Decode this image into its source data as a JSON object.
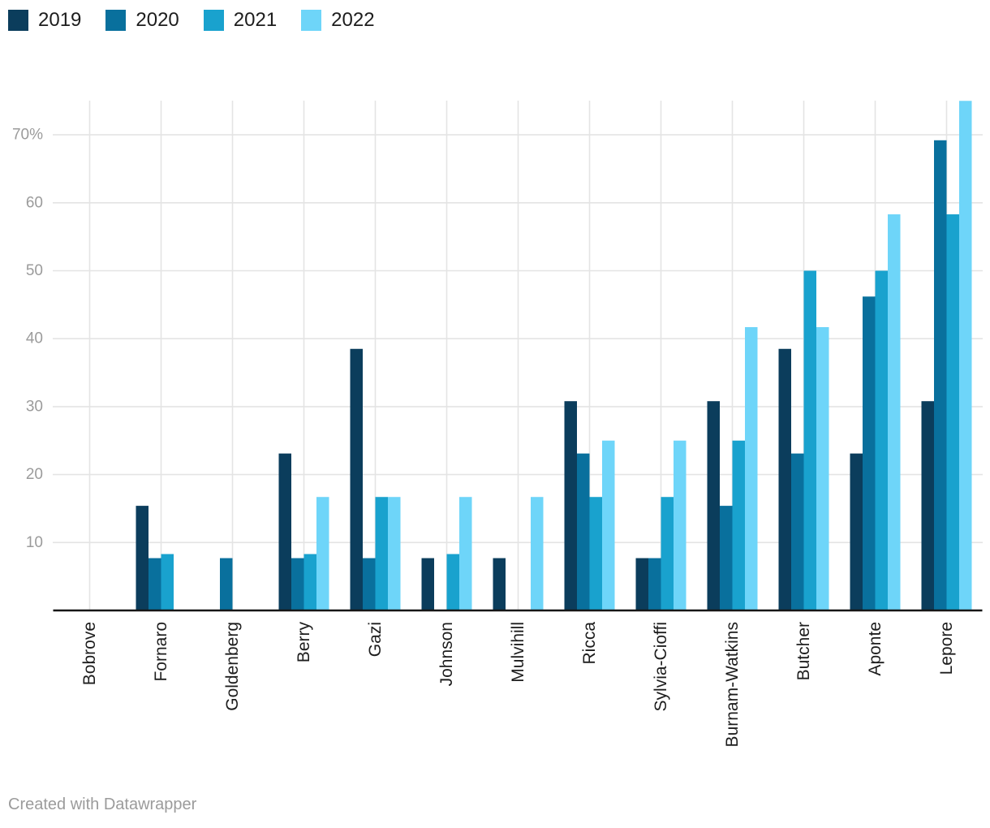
{
  "chart_data": {
    "type": "bar",
    "title": "",
    "categories": [
      "Bobrove",
      "Fornaro",
      "Goldenberg",
      "Berry",
      "Gazi",
      "Johnson",
      "Mulvihill",
      "Ricca",
      "Sylvia-Cioffi",
      "Burnam-Watkins",
      "Butcher",
      "Aponte",
      "Lepore"
    ],
    "series": [
      {
        "name": "2019",
        "color": "#0b3d5c",
        "values": [
          0,
          15.4,
          0,
          23.1,
          38.5,
          7.7,
          7.7,
          30.8,
          7.7,
          30.8,
          38.5,
          23.1,
          30.8
        ]
      },
      {
        "name": "2020",
        "color": "#09709d",
        "values": [
          0,
          7.7,
          7.7,
          7.7,
          7.7,
          0,
          0,
          23.1,
          7.7,
          15.4,
          23.1,
          46.2,
          69.2
        ]
      },
      {
        "name": "2021",
        "color": "#19a2ce",
        "values": [
          0,
          8.3,
          0,
          8.3,
          16.7,
          8.3,
          0,
          16.7,
          16.7,
          25,
          50,
          50,
          58.3
        ]
      },
      {
        "name": "2022",
        "color": "#6ed5f9",
        "values": [
          0,
          0,
          0,
          16.7,
          16.7,
          16.7,
          16.7,
          25,
          25,
          41.7,
          41.7,
          58.3,
          75
        ]
      }
    ],
    "xlabel": "",
    "ylabel": "",
    "ylim": [
      0,
      75
    ],
    "yticks": [
      {
        "value": 10,
        "label": "10"
      },
      {
        "value": 20,
        "label": "20"
      },
      {
        "value": 30,
        "label": "30"
      },
      {
        "value": 40,
        "label": "40"
      },
      {
        "value": 50,
        "label": "50"
      },
      {
        "value": 60,
        "label": "60"
      },
      {
        "value": 70,
        "label": "70%"
      }
    ],
    "grid": "on",
    "legend_position": "top-left",
    "grid_color": "#e4e4e4",
    "baseline_color": "#161616",
    "ytick_color": "#9b9b9b",
    "xlabel_color": "#1d1d1d"
  },
  "footer": {
    "text": "Created with Datawrapper"
  }
}
